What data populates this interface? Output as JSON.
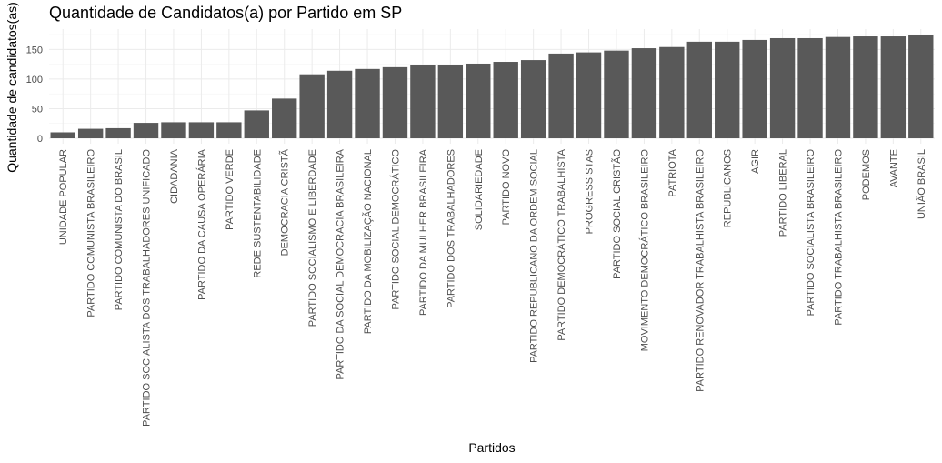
{
  "chart_data": {
    "type": "bar",
    "title": "Quantidade de Candidatos(a) por Partido em SP",
    "xlabel": "Partidos",
    "ylabel": "Quantidade de candidatos(as)",
    "ylim": [
      0,
      180
    ],
    "yticks": [
      0,
      50,
      100,
      150
    ],
    "grid": true,
    "bar_color": "#595959",
    "categories": [
      "UNIDADE POPULAR",
      "PARTIDO COMUNISTA BRASILEIRO",
      "PARTIDO COMUNISTA DO BRASIL",
      "PARTIDO SOCIALISTA DOS TRABALHADORES UNIFICADO",
      "CIDADANIA",
      "PARTIDO DA CAUSA OPERÁRIA",
      "PARTIDO VERDE",
      "REDE SUSTENTABILIDADE",
      "DEMOCRACIA CRISTÃ",
      "PARTIDO SOCIALISMO E LIBERDADE",
      "PARTIDO DA SOCIAL DEMOCRACIA BRASILEIRA",
      "PARTIDO DA MOBILIZAÇÃO NACIONAL",
      "PARTIDO SOCIAL DEMOCRÁTICO",
      "PARTIDO DA MULHER BRASILEIRA",
      "PARTIDO DOS TRABALHADORES",
      "SOLIDARIEDADE",
      "PARTIDO NOVO",
      "PARTIDO REPUBLICANO DA ORDEM SOCIAL",
      "PARTIDO DEMOCRÁTICO TRABALHISTA",
      "PROGRESSISTAS",
      "PARTIDO SOCIAL CRISTÃO",
      "MOVIMENTO DEMOCRÁTICO BRASILEIRO",
      "PATRIOTA",
      "PARTIDO RENOVADOR TRABALHISTA BRASILEIRO",
      "REPUBLICANOS",
      "AGIR",
      "PARTIDO LIBERAL",
      "PARTIDO SOCIALISTA BRASILEIRO",
      "PARTIDO TRABALHISTA BRASILEIRO",
      "PODEMOS",
      "AVANTE",
      "UNIÃO BRASIL"
    ],
    "values": [
      10,
      16,
      17,
      26,
      27,
      27,
      27,
      47,
      67,
      108,
      114,
      117,
      120,
      123,
      123,
      126,
      129,
      132,
      143,
      145,
      148,
      152,
      154,
      163,
      163,
      166,
      169,
      169,
      171,
      172,
      172,
      175
    ]
  }
}
